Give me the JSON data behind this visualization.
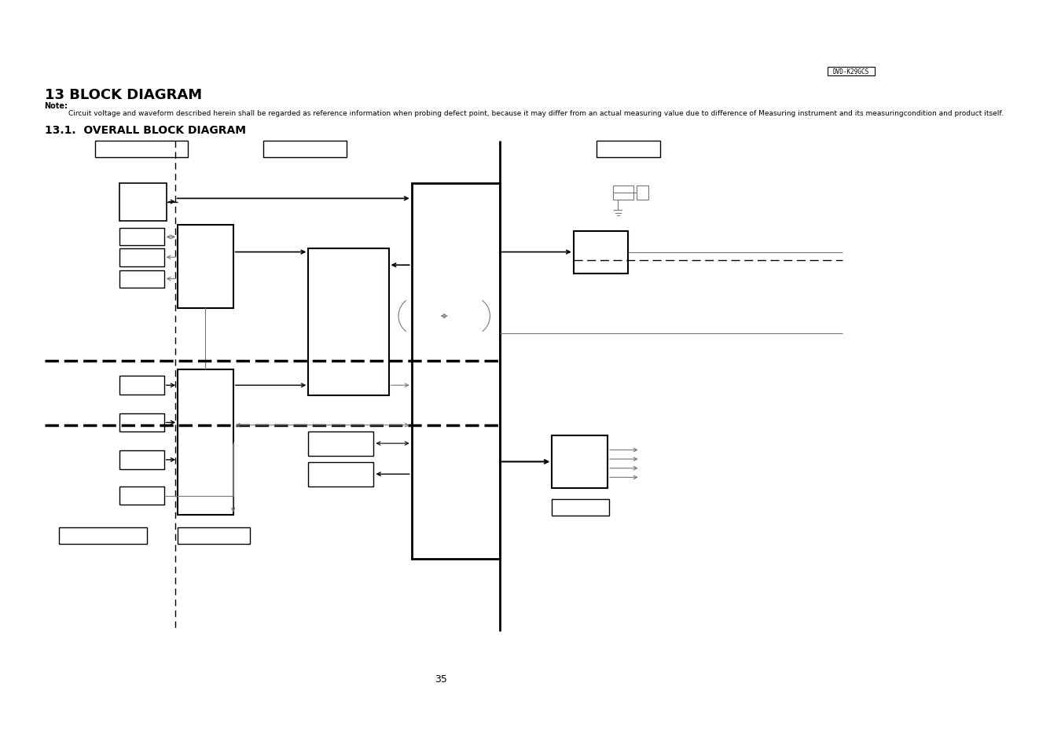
{
  "title": "13 BLOCK DIAGRAM",
  "subtitle": "13.1.  OVERALL BLOCK DIAGRAM",
  "note": "Note:",
  "note_text": "   Circuit voltage and waveform described herein shall be regarded as reference information when probing defect point, because it may differ from an actual measuring value due to difference of Measuring instrument and its measuringcondition and product itself.",
  "model": "DVD-K29GCS",
  "page": "35",
  "bg_color": "#ffffff"
}
